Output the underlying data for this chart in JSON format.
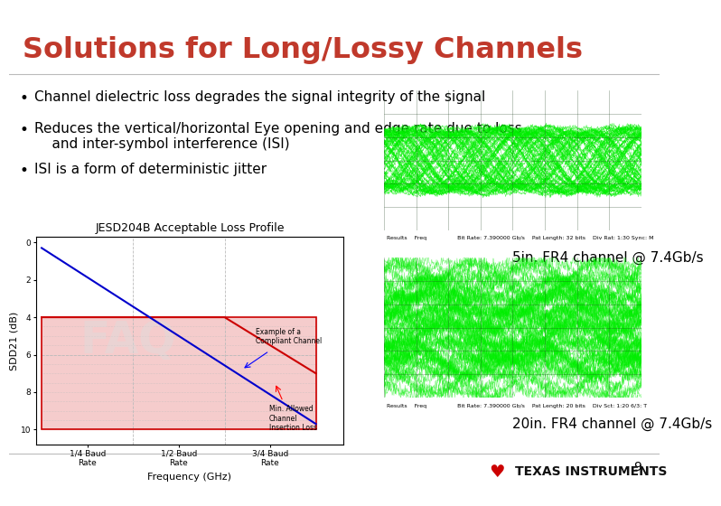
{
  "title": "Solutions for Long/Lossy Channels",
  "title_color": "#C0392B",
  "background_color": "#FFFFFF",
  "bullet_points": [
    "Channel dielectric loss degrades the signal integrity of the signal",
    "Reduces the vertical/horizontal Eye opening and edge rate due to loss\n    and inter-symbol interference (ISI)",
    "ISI is a form of deterministic jitter"
  ],
  "chart_title": "JESD204B Acceptable Loss Profile",
  "chart_xlabel": "Frequency (GHz)",
  "chart_ylabel": "SDD21 (dB)",
  "caption_top": "5in. FR4 channel @ 7.4Gb/s",
  "caption_bottom": "20in. FR4 channel @ 7.4Gb/s",
  "page_number": "9",
  "footer_text": "TEXAS INSTRUMENTS",
  "eye1_bg": "#1A3300",
  "eye2_bg": "#1A3300",
  "eye_line_color": "#00EE00",
  "status_bar_color": "#CCCCCC",
  "chart_bg": "#FFFFFF",
  "chart_fill_color": "#F5CCCC",
  "red_line_color": "#CC0000",
  "blue_line_color": "#0000CC",
  "grid_color": "#BBBBBB"
}
